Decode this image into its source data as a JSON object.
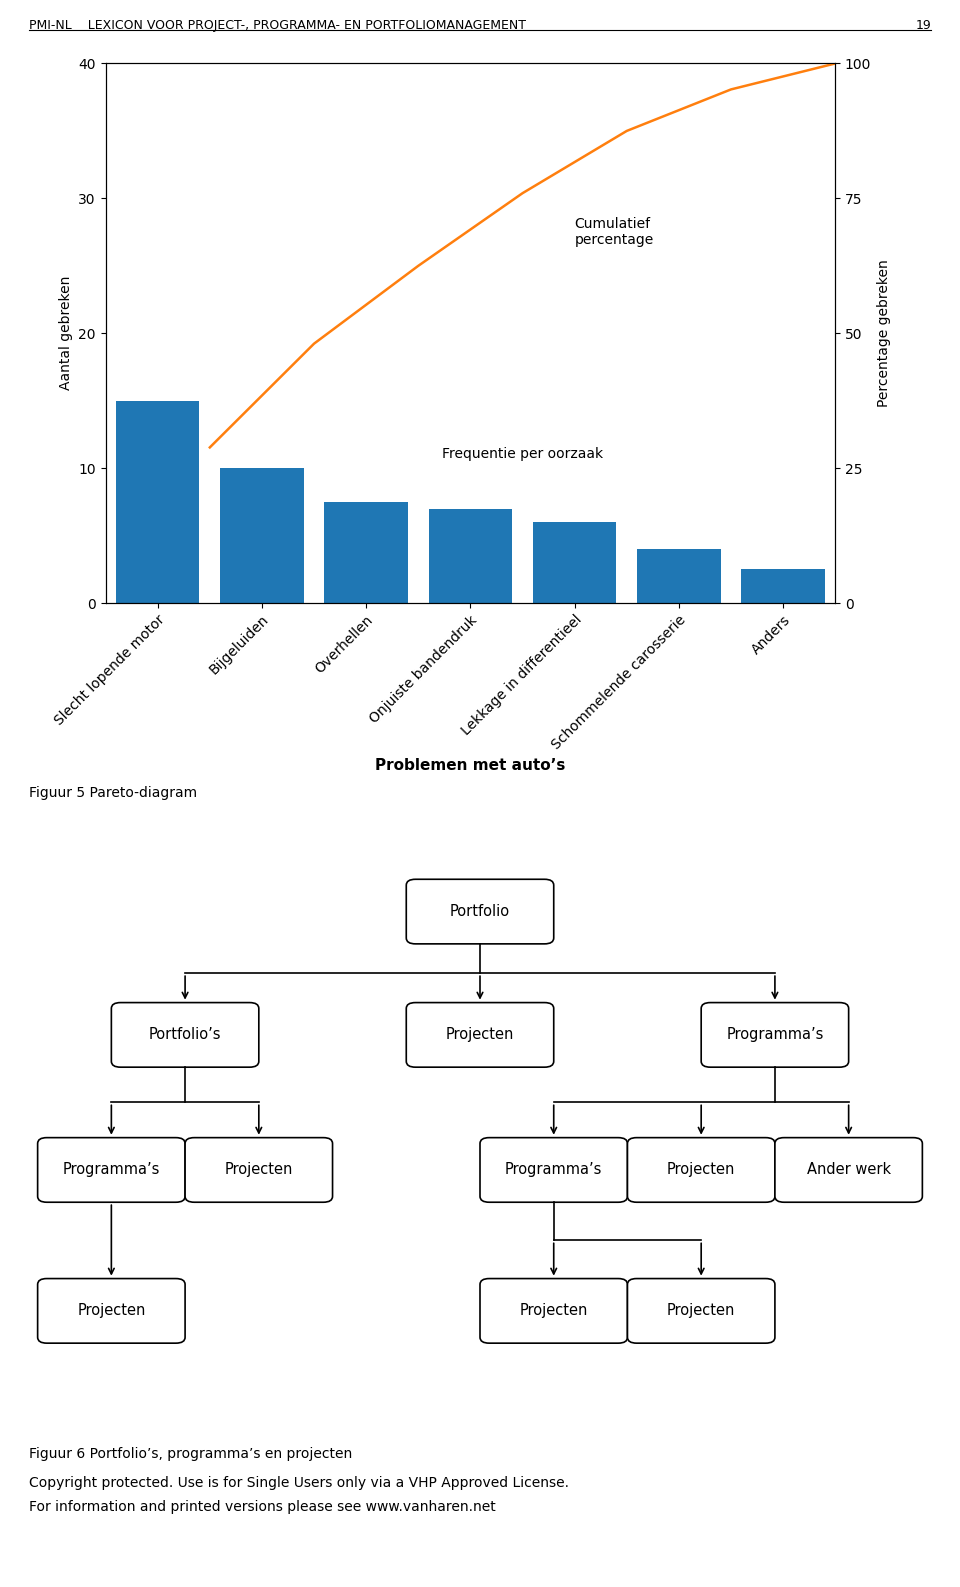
{
  "chart_data": {
    "type": "bar",
    "categories": [
      "Slecht lopende motor",
      "Bijgeluiden",
      "Overhellen",
      "Onjuiste bandendruk",
      "Lekkage in differentieel",
      "Schommelende carosserie",
      "Anders"
    ],
    "series": [
      {
        "type": "bar",
        "values": [
          15,
          10,
          7.5,
          7,
          6,
          4,
          2.5
        ]
      },
      {
        "type": "line",
        "axis": "y2",
        "values": [
          28.846153846153847,
          48.07692307692308,
          62.5,
          75.96153846153847,
          87.5,
          95.1923076923077,
          100.0
        ]
      }
    ],
    "x_label": "Problemen met auto’s",
    "y_label": "Aantal gebreken",
    "y2_label": "Percentage gebreken",
    "ylim": [
      0,
      40
    ],
    "yticks": [
      0,
      10,
      20,
      30,
      40
    ],
    "y2lim": [
      0,
      100
    ],
    "y2ticks": [
      0,
      25,
      50,
      75,
      100
    ],
    "annotations": [
      "Frequentie per oorzaak",
      "Cumulatief\npercentage",
      "PMI-NL    LEXICON VOOR PROJECT-, PROGRAMMA- EN PORTFOLIOMANAGEMENT",
      "19",
      "Figuur 5 Pareto-diagram",
      "Figuur 6 Portfolio’s, programma’s en projecten",
      "Copyright protected. Use is for Single Users only via a VHP Approved License.",
      "For information and printed versions please see www.vanharen.net",
      "Portfolio",
      "Portfolio’s",
      "Projecten",
      "Programma’s",
      "Programma’s",
      "Projecten",
      "Programma’s",
      "Projecten",
      "Ander werk",
      "Projecten",
      "Projecten",
      "Projecten"
    ]
  }
}
